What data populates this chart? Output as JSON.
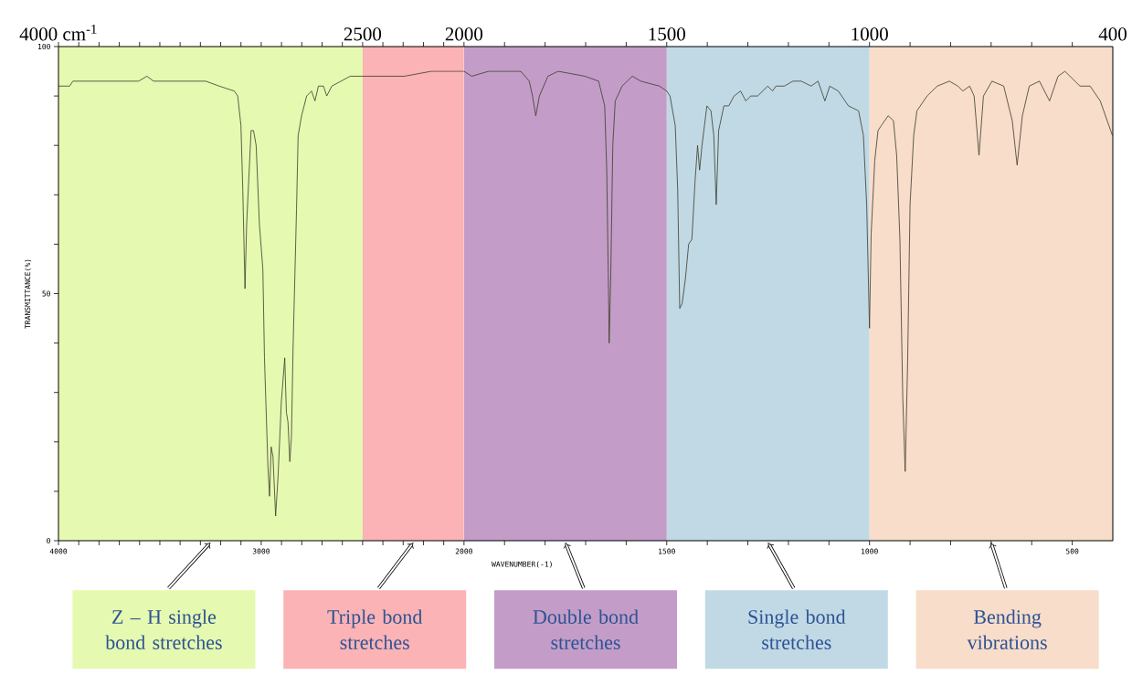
{
  "chart_data": [
    {
      "type": "line",
      "ylabel": "TRANSMITTANCE(%)",
      "xlim": [
        4000,
        2000
      ],
      "ylim": [
        0,
        100
      ],
      "xticks": [
        4000,
        {
          "value": 3900,
          "label": null
        },
        {
          "value": 3800,
          "label": null
        },
        {
          "value": 3700,
          "label": null
        },
        {
          "value": 3600,
          "label": null
        },
        {
          "value": 3500,
          "label": null
        },
        {
          "value": 3400,
          "label": null
        },
        {
          "value": 3300,
          "label": null
        },
        {
          "value": 3200,
          "label": null
        },
        {
          "value": 3100,
          "label": null
        },
        3000,
        {
          "value": 2900,
          "label": null
        },
        {
          "value": 2800,
          "label": null
        },
        {
          "value": 2700,
          "label": null
        },
        {
          "value": 2600,
          "label": null
        },
        {
          "value": 2500,
          "label": null
        },
        {
          "value": 2400,
          "label": null
        },
        {
          "value": 2300,
          "label": null
        },
        {
          "value": 2200,
          "label": null
        },
        {
          "value": 2100,
          "label": null
        }
      ],
      "x2lim": [
        4000,
        2000
      ],
      "x2ticks": [
        {
          "value": 4000,
          "label": "4000 cm$^{-1}$"
        },
        2500,
        2000
      ],
      "yticks": [
        0,
        {
          "value": 10,
          "label": null
        },
        {
          "value": 20,
          "label": null
        },
        {
          "value": 30,
          "label": null
        },
        {
          "value": 40,
          "label": null
        },
        50,
        {
          "value": 60,
          "label": null
        },
        {
          "value": 70,
          "label": null
        },
        {
          "value": 80,
          "label": null
        },
        {
          "value": 90,
          "label": null
        },
        100
      ],
      "bands": [
        {
          "axis": "x",
          "from": 4000,
          "to": 2500,
          "label": "Z – H single bond stretches",
          "color": "#e5f9b0"
        },
        {
          "axis": "x",
          "from": 2500,
          "to": 2000,
          "label": "Triple bond stretches",
          "color": "#fbb3b5"
        }
      ],
      "series": [
        {
          "color": "#3b3b2c",
          "x": [
            4000,
            3945,
            3929,
            3788,
            3605,
            3564,
            3531,
            3406,
            3340,
            3274,
            3207,
            3133,
            3116,
            3100,
            3091,
            3080,
            3072,
            3050,
            3038,
            3025,
            3009,
            2992,
            2984,
            2967,
            2959,
            2951,
            2942,
            2929,
            2917,
            2901,
            2884,
            2876,
            2868,
            2859,
            2851,
            2843,
            2826,
            2818,
            2801,
            2776,
            2752,
            2735,
            2718,
            2693,
            2677,
            2652,
            2561,
            2503,
            2343,
            2293,
            2161,
            2000
          ],
          "values": [
            92,
            92,
            93,
            93,
            93,
            94,
            93,
            93,
            93,
            93,
            92,
            91,
            90,
            84,
            71,
            51,
            64,
            83,
            83,
            80,
            64,
            55,
            37,
            15,
            9,
            19,
            17,
            5,
            13,
            28,
            37,
            26,
            24,
            16,
            21,
            39,
            67,
            82,
            86,
            90,
            91,
            89,
            92,
            92,
            90,
            92,
            94,
            94,
            94,
            94,
            95,
            95
          ]
        }
      ]
    },
    {
      "type": "line",
      "xlabel": "WAVENUMBER(-1)",
      "xlim": [
        2000,
        400
      ],
      "ylim": [
        0,
        100
      ],
      "tick_labels": "x",
      "xticks": [
        2000,
        {
          "value": 1900,
          "label": null
        },
        {
          "value": 1800,
          "label": null
        },
        {
          "value": 1700,
          "label": null
        },
        {
          "value": 1600,
          "label": null
        },
        1500,
        {
          "value": 1400,
          "label": null
        },
        {
          "value": 1300,
          "label": null
        },
        {
          "value": 1200,
          "label": null
        },
        {
          "value": 1100,
          "label": null
        },
        1000,
        {
          "value": 900,
          "label": null
        },
        {
          "value": 800,
          "label": null
        },
        {
          "value": 700,
          "label": null
        },
        {
          "value": 600,
          "label": null
        },
        500
      ],
      "x2lim": [
        2000,
        400
      ],
      "x2ticks": [
        1500,
        1000,
        400
      ],
      "bands": [
        {
          "axis": "x",
          "from": 2000,
          "to": 1500,
          "label": "Double bond stretches",
          "color": "#c39dc7"
        },
        {
          "axis": "x",
          "from": 1500,
          "to": 1000,
          "label": "Single bond stretches",
          "color": "#c1d9e5"
        },
        {
          "axis": "x",
          "from": 1000,
          "to": 400,
          "label": "Bending vibrations",
          "color": "#f7ddca"
        }
      ],
      "series": [
        {
          "color": "#3b3b2c",
          "x": [
            2000,
            1981,
            1939,
            1860,
            1839,
            1831,
            1823,
            1814,
            1793,
            1768,
            1702,
            1668,
            1653,
            1648,
            1643,
            1642,
            1638,
            1633,
            1627,
            1610,
            1585,
            1564,
            1518,
            1500,
            1492,
            1479,
            1473,
            1468,
            1462,
            1454,
            1446,
            1438,
            1430,
            1424,
            1419,
            1413,
            1401,
            1391,
            1384,
            1378,
            1372,
            1359,
            1347,
            1334,
            1318,
            1305,
            1293,
            1276,
            1251,
            1239,
            1231,
            1210,
            1189,
            1168,
            1144,
            1127,
            1110,
            1098,
            1077,
            1052,
            1027,
            1015,
            1007,
            1000,
            996,
            987,
            979,
            971,
            954,
            941,
            933,
            925,
            918,
            912,
            906,
            900,
            891,
            883,
            858,
            833,
            803,
            782,
            770,
            753,
            742,
            730,
            719,
            698,
            669,
            648,
            636,
            623,
            606,
            581,
            556,
            535,
            518,
            481,
            456,
            431,
            401
          ],
          "values": [
            95,
            94,
            95,
            95,
            93,
            90,
            86,
            90,
            94,
            95,
            94,
            93,
            88,
            75,
            47,
            40,
            54,
            80,
            89,
            92,
            94,
            93,
            92,
            91,
            90,
            84,
            71,
            47,
            48,
            53,
            60,
            61,
            73,
            80,
            75,
            80,
            88,
            87,
            82,
            68,
            83,
            88,
            88,
            90,
            91,
            89,
            90,
            90,
            92,
            91,
            92,
            92,
            93,
            93,
            92,
            93,
            89,
            92,
            91,
            88,
            87,
            82,
            68,
            43,
            62,
            77,
            83,
            84,
            86,
            85,
            78,
            61,
            29,
            14,
            36,
            68,
            82,
            87,
            90,
            92,
            93,
            92,
            91,
            92,
            90,
            78,
            90,
            93,
            92,
            85,
            76,
            86,
            92,
            93,
            89,
            94,
            95,
            92,
            92,
            89,
            82
          ]
        }
      ]
    }
  ]
}
